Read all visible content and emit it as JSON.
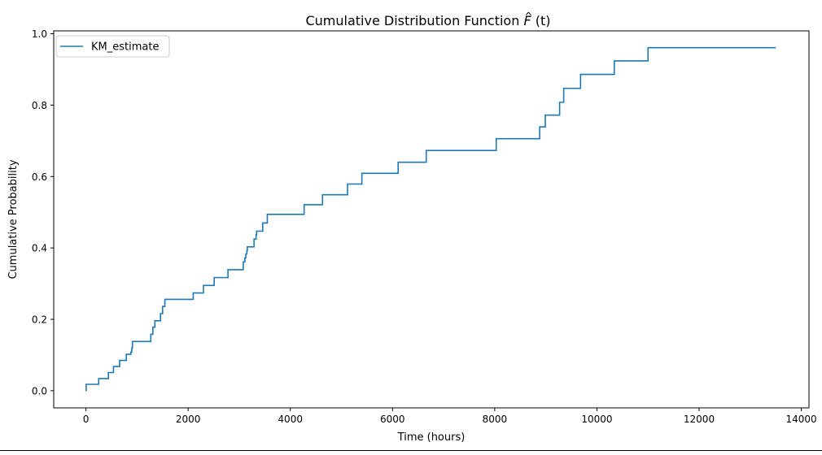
{
  "chart_data": {
    "type": "line",
    "step": true,
    "title": "Cumulative Distribution Function F̂(t)",
    "title_prefix": "Cumulative Distribution Function ",
    "title_math_symbol": "F",
    "title_math_hat": "^",
    "title_math_arg": "(t)",
    "xlabel": "Time (hours)",
    "ylabel": "Cumulative Probability",
    "xlim": [
      -630,
      14150
    ],
    "ylim": [
      -0.048,
      1.008
    ],
    "xticks": [
      0,
      2000,
      4000,
      6000,
      8000,
      10000,
      12000,
      14000
    ],
    "xtick_labels": [
      "0",
      "2000",
      "4000",
      "6000",
      "8000",
      "10000",
      "12000",
      "14000"
    ],
    "yticks": [
      0.0,
      0.2,
      0.4,
      0.6,
      0.8,
      1.0
    ],
    "ytick_labels": [
      "0.0",
      "0.2",
      "0.4",
      "0.6",
      "0.8",
      "1.0"
    ],
    "grid": false,
    "legend": {
      "position": "top-left",
      "entries": [
        "KM_estimate"
      ]
    },
    "series": [
      {
        "name": "KM_estimate",
        "color": "#1f77b4",
        "x": [
          0,
          5,
          250,
          440,
          540,
          660,
          790,
          880,
          895,
          900,
          910,
          1270,
          1310,
          1350,
          1460,
          1500,
          1545,
          2100,
          2300,
          2510,
          2780,
          3080,
          3110,
          3130,
          3150,
          3160,
          3290,
          3330,
          3340,
          3460,
          3550,
          4270,
          4630,
          5120,
          5400,
          6110,
          6660,
          8030,
          8880,
          8990,
          9270,
          9350,
          9680,
          10340,
          11000,
          13500
        ],
        "y": [
          0.0,
          0.018,
          0.034,
          0.051,
          0.068,
          0.085,
          0.102,
          0.108,
          0.114,
          0.12,
          0.138,
          0.158,
          0.178,
          0.196,
          0.216,
          0.236,
          0.256,
          0.274,
          0.295,
          0.317,
          0.339,
          0.361,
          0.372,
          0.383,
          0.393,
          0.403,
          0.425,
          0.437,
          0.447,
          0.47,
          0.494,
          0.521,
          0.549,
          0.579,
          0.609,
          0.64,
          0.673,
          0.706,
          0.739,
          0.772,
          0.808,
          0.847,
          0.886,
          0.924,
          0.961,
          0.961
        ]
      }
    ]
  }
}
